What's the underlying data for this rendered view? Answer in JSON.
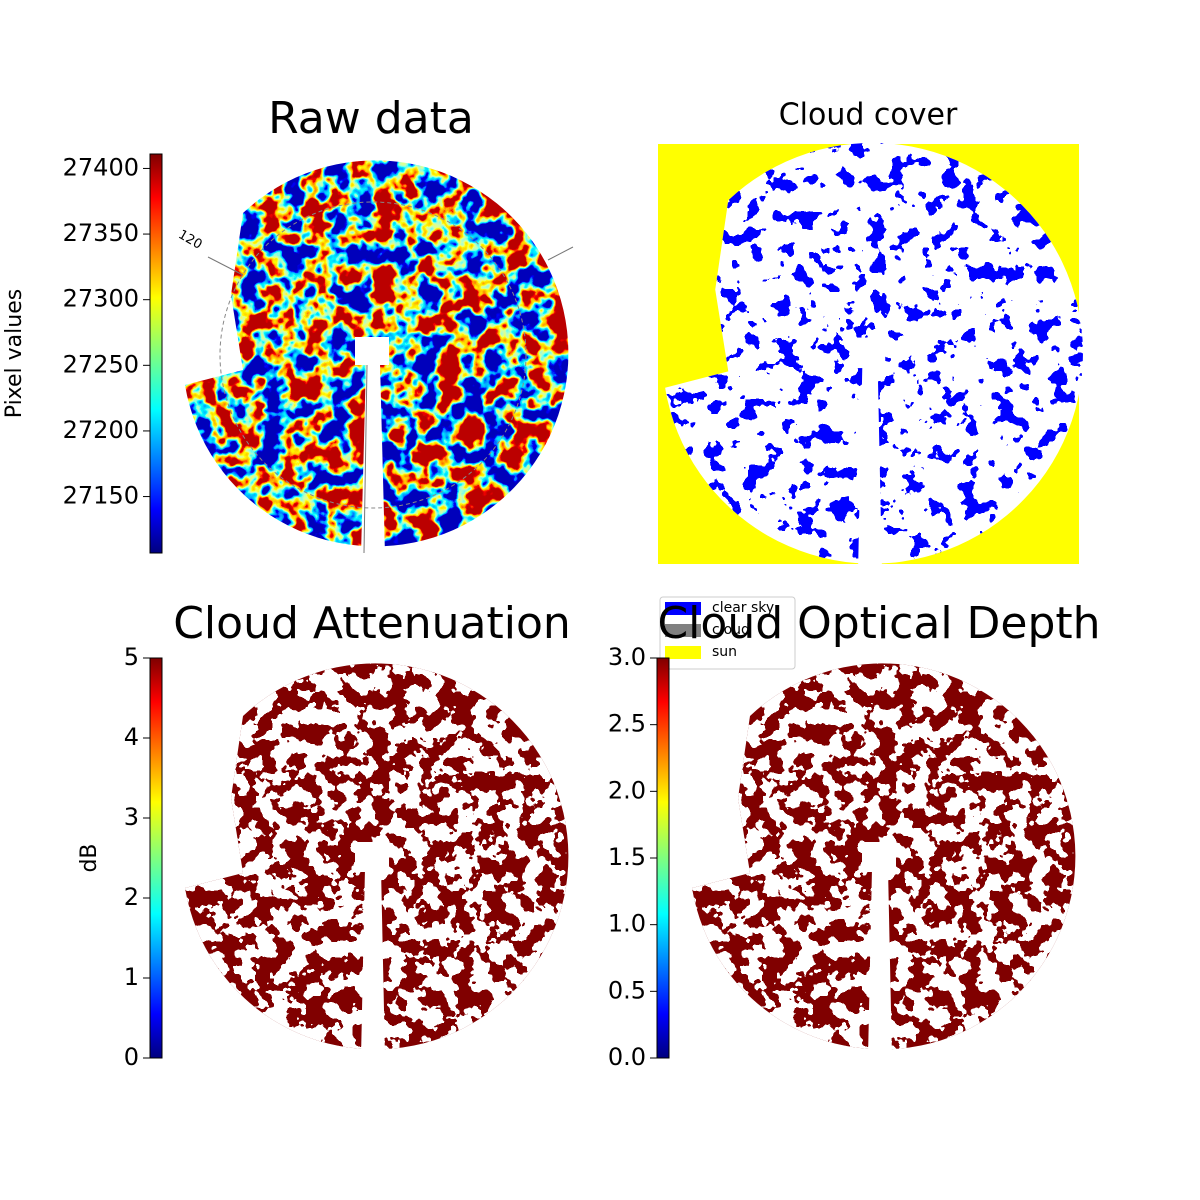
{
  "chart_data": [
    {
      "type": "image",
      "title": "Raw data",
      "annotation": "120",
      "colorbar": {
        "label": "Pixel values",
        "colormap": "jet",
        "ylim": [
          27107,
          27411
        ],
        "yticks": [
          27150,
          27200,
          27250,
          27300,
          27350,
          27400
        ]
      }
    },
    {
      "type": "image",
      "title": "Cloud cover",
      "legend": {
        "labels": [
          "clear sky",
          "cloud",
          "sun"
        ],
        "colors": [
          "#0000ff",
          "#808080",
          "#ffff00"
        ]
      }
    },
    {
      "type": "image",
      "title": "Cloud Attenuation",
      "colorbar": {
        "label": "dB",
        "colormap": "jet",
        "ylim": [
          0,
          5
        ],
        "yticks": [
          0,
          1,
          2,
          3,
          4,
          5
        ]
      }
    },
    {
      "type": "image",
      "title": "Cloud Optical Depth",
      "colorbar": {
        "colormap": "jet",
        "ylim": [
          0,
          3
        ],
        "yticks": [
          {
            "value": 0,
            "label": "0.0"
          },
          0.5,
          {
            "value": 1,
            "label": "1.0"
          },
          1.5,
          {
            "value": 2,
            "label": "2.0"
          },
          2.5,
          {
            "value": 3,
            "label": "3.0"
          }
        ]
      }
    }
  ]
}
